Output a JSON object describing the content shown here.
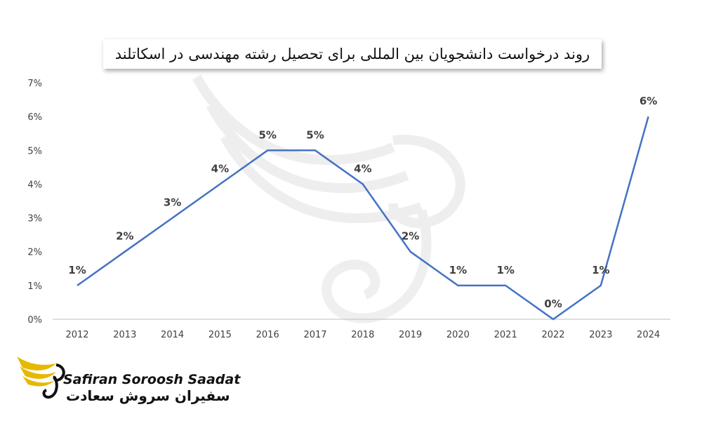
{
  "title": "روند درخواست دانشجویان بین المللی برای تحصیل رشته مهندسی در اسکاتلند",
  "logo": {
    "name_en": "Safiran Soroosh Saadat",
    "name_fa": "سفیران سروش سعادت",
    "accent": "#e6b800"
  },
  "colors": {
    "line": "#4472c4",
    "axis": "#bfbfbf",
    "text": "#404040"
  },
  "chart_data": {
    "type": "line",
    "title": "روند درخواست دانشجویان بین المللی برای تحصیل رشته مهندسی در اسکاتلند",
    "categories": [
      "2012",
      "2013",
      "2014",
      "2015",
      "2016",
      "2017",
      "2018",
      "2019",
      "2020",
      "2021",
      "2022",
      "2023",
      "2024"
    ],
    "values": [
      1,
      2,
      3,
      4,
      5,
      5,
      4,
      2,
      1,
      1,
      0,
      1,
      6
    ],
    "data_labels": [
      "1%",
      "2%",
      "3%",
      "4%",
      "5%",
      "5%",
      "4%",
      "2%",
      "1%",
      "1%",
      "0%",
      "1%",
      "6%"
    ],
    "y_ticks": [
      "0%",
      "1%",
      "2%",
      "3%",
      "4%",
      "5%",
      "6%",
      "7%"
    ],
    "ylim": [
      0,
      7
    ],
    "grid": false,
    "xlabel": "",
    "ylabel": ""
  }
}
